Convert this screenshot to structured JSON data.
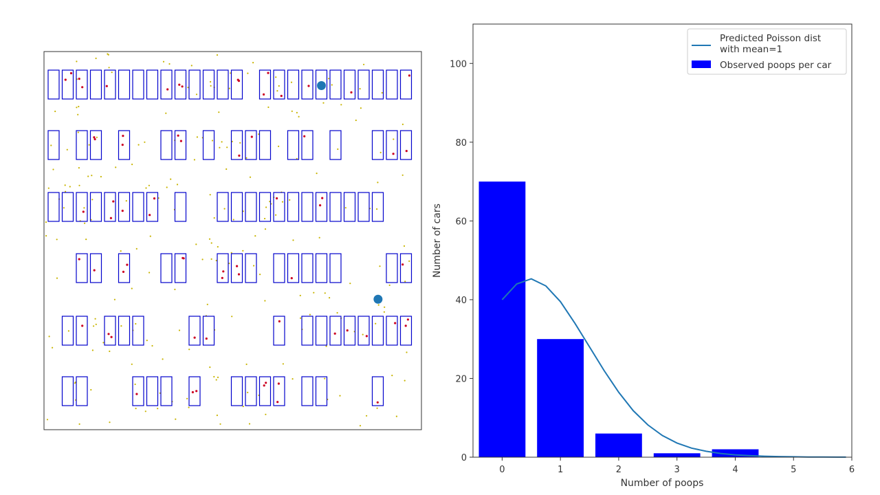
{
  "colors": {
    "car_outline": "#0000cc",
    "poop_red": "#cc0022",
    "poop_yellow": "#c8b400",
    "marker": "#1f77b4",
    "bar_fill": "#0000ff",
    "curve": "#1f77b4",
    "axis": "#333333"
  },
  "chart_data": [
    {
      "type": "scatter",
      "description_shown": "parking lot simulation (no axes shown)",
      "car_rows": [
        "11111111111111011111111111",
        "10110100110101110110100111",
        "11111111010011111111111100",
        "00110100110011101111100011",
        "01101110001100001011111111",
        "01100011101001111011000100"
      ],
      "markers": [
        {
          "x": 0.735,
          "y": 0.09
        },
        {
          "x": 0.885,
          "y": 0.655
        }
      ]
    },
    {
      "type": "bar",
      "xlabel": "Number of poops",
      "ylabel": "Number of cars",
      "xlim": [
        -0.5,
        6
      ],
      "ylim": [
        0,
        110
      ],
      "xticks": [
        0,
        1,
        2,
        3,
        4,
        5,
        6
      ],
      "yticks": [
        0,
        20,
        40,
        60,
        80,
        100
      ],
      "bars": {
        "name": "Observed poops per car",
        "categories": [
          0,
          1,
          2,
          3,
          4
        ],
        "values": [
          70,
          30,
          6,
          1,
          2
        ]
      },
      "line": {
        "name_line1": "Predicted Poisson dist",
        "name_line2": "with mean=1",
        "x": [
          0,
          0.25,
          0.5,
          0.75,
          1,
          1.25,
          1.5,
          1.75,
          2,
          2.25,
          2.5,
          2.75,
          3,
          3.25,
          3.5,
          3.75,
          4,
          4.25,
          4.5,
          4.75,
          5,
          5.25,
          5.5,
          5.75,
          5.9
        ],
        "y": [
          40,
          44,
          45.3,
          43.5,
          39.5,
          34,
          28,
          22,
          16.5,
          11.8,
          8.2,
          5.5,
          3.6,
          2.3,
          1.5,
          0.95,
          0.6,
          0.38,
          0.24,
          0.15,
          0.1,
          0.06,
          0.04,
          0.02,
          0.01
        ]
      },
      "legend": "top-right"
    }
  ]
}
